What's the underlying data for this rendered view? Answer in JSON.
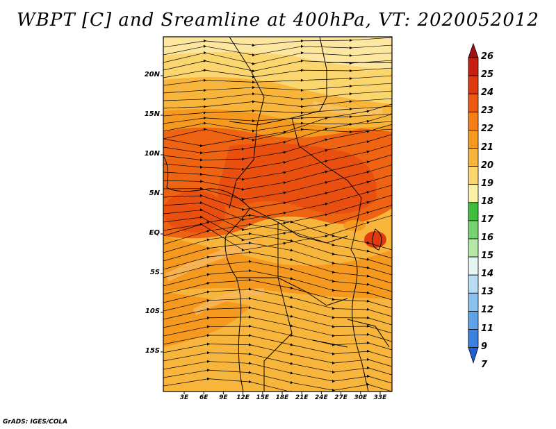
{
  "title": "WBPT [C] and Sreamline at 400hPa, VT: 2020052012",
  "footer": "GrADS: IGES/COLA",
  "map": {
    "lat_labels": [
      "20N",
      "15N",
      "10N",
      "5N",
      "EQ",
      "5S",
      "10S",
      "15S"
    ],
    "lon_labels": [
      "3E",
      "6E",
      "9E",
      "12E",
      "15E",
      "18E",
      "21E",
      "24E",
      "27E",
      "30E",
      "33E"
    ]
  },
  "colorbar": {
    "labels": [
      "26",
      "25",
      "24",
      "23",
      "22",
      "21",
      "20",
      "19",
      "18",
      "17",
      "16",
      "15",
      "14",
      "13",
      "12",
      "11",
      "9",
      "7"
    ],
    "colors": [
      "#a50f0f",
      "#c81e10",
      "#e0380f",
      "#ee5a12",
      "#f47d14",
      "#f59a1e",
      "#f7b53c",
      "#fbd56e",
      "#fdf1a8",
      "#3ebd3e",
      "#76d370",
      "#b4e8a6",
      "#e4f6f2",
      "#b8dcf6",
      "#8cc2f0",
      "#5ea2e8",
      "#3a82e0",
      "#1e5ed6"
    ]
  }
}
